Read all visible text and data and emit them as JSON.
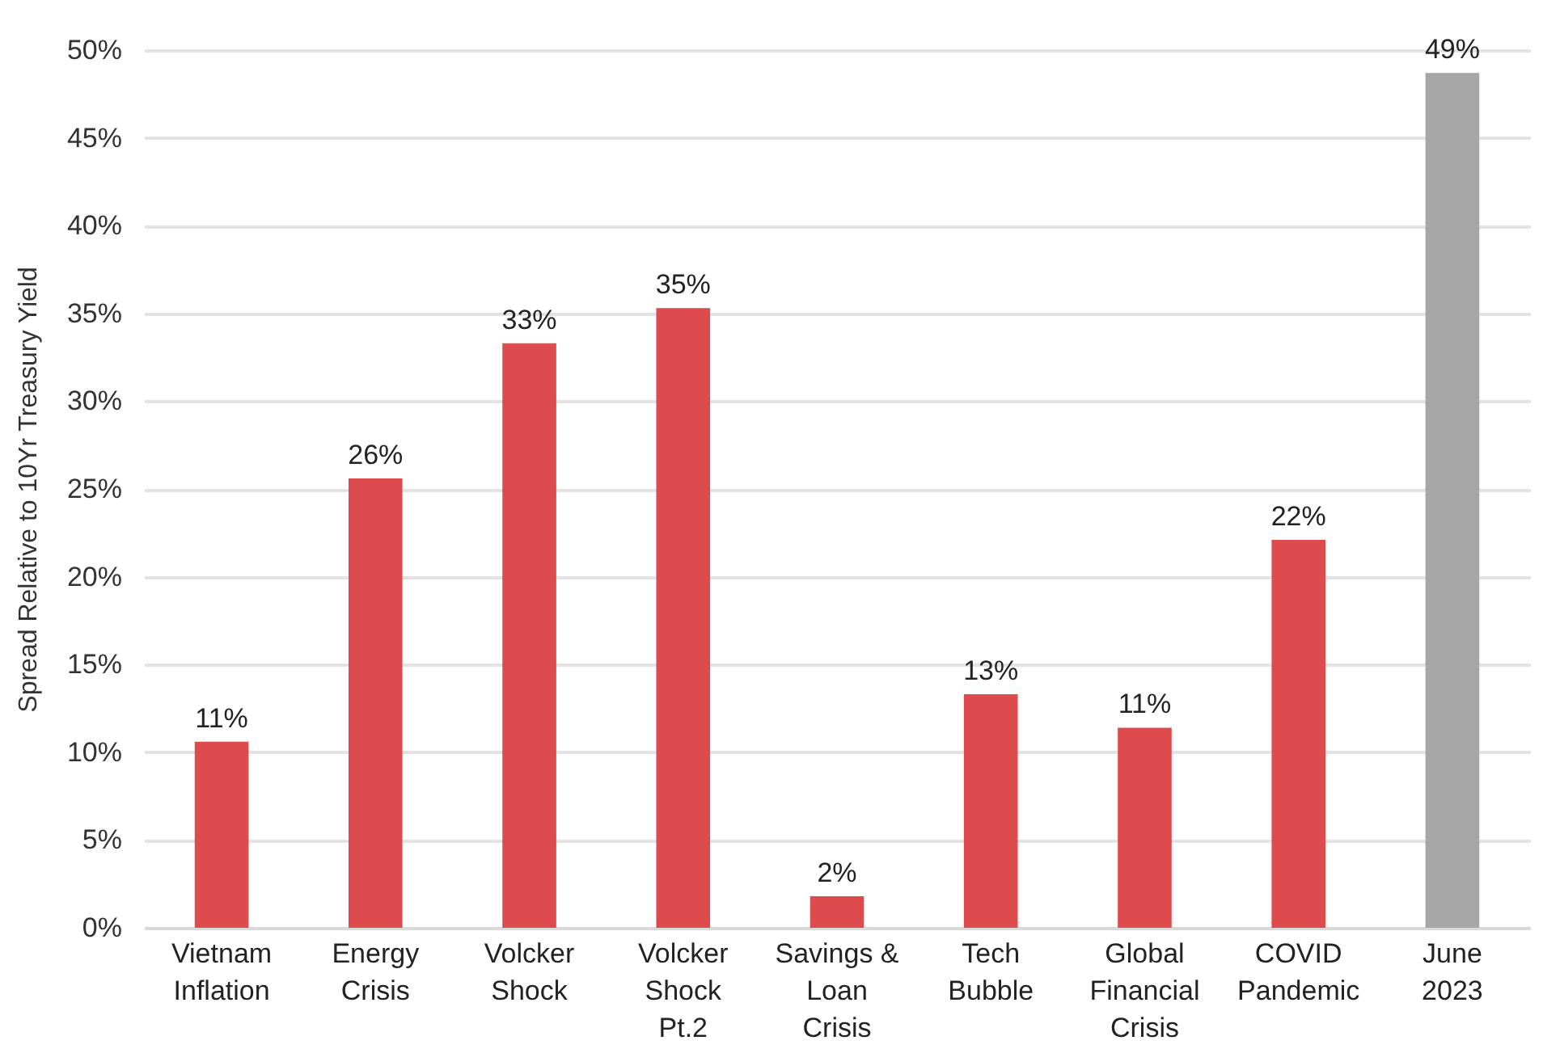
{
  "chart_data": {
    "type": "bar",
    "ylabel": "Spread Relative to 10Yr Treasury Yield",
    "categories": [
      "Vietnam Inflation",
      "Energy Crisis",
      "Volcker Shock",
      "Volcker Shock Pt.2",
      "Savings & Loan Crisis",
      "Tech Bubble",
      "Global Financial Crisis",
      "COVID Pandemic",
      "June 2023"
    ],
    "values": [
      10.6,
      25.6,
      33.3,
      35.3,
      1.8,
      13.3,
      11.4,
      22.1,
      48.7
    ],
    "value_labels": [
      "11%",
      "26%",
      "33%",
      "35%",
      "2%",
      "13%",
      "11%",
      "22%",
      "49%"
    ],
    "colors": [
      "#dd4b4c",
      "#dd4b4c",
      "#dd4b4c",
      "#dd4b4c",
      "#dd4b4c",
      "#dd4b4c",
      "#dd4b4c",
      "#dd4b4c",
      "#a6a6a6"
    ],
    "ylim": [
      0,
      50
    ],
    "yticks": [
      {
        "value": 0,
        "label": "0%"
      },
      {
        "value": 5,
        "label": "5%"
      },
      {
        "value": 10,
        "label": "10%"
      },
      {
        "value": 15,
        "label": "15%"
      },
      {
        "value": 20,
        "label": "20%"
      },
      {
        "value": 25,
        "label": "25%"
      },
      {
        "value": 30,
        "label": "30%"
      },
      {
        "value": 35,
        "label": "35%"
      },
      {
        "value": 40,
        "label": "40%"
      },
      {
        "value": 45,
        "label": "45%"
      },
      {
        "value": 50,
        "label": "50%"
      }
    ],
    "grid": "y"
  }
}
